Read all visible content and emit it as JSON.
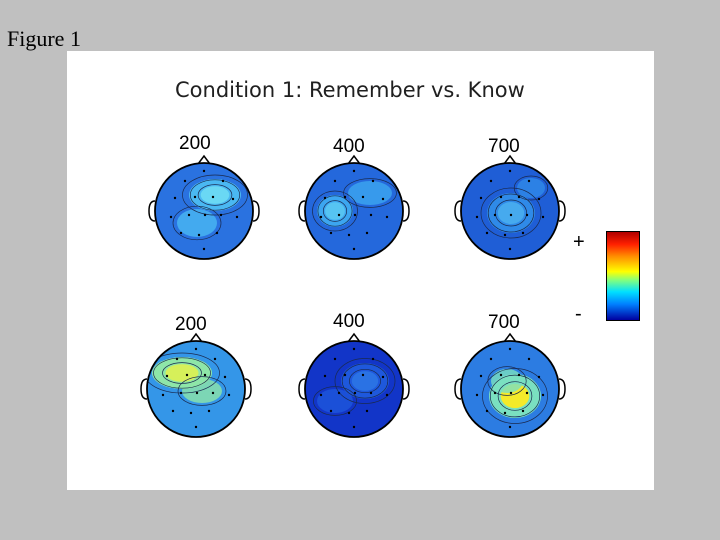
{
  "figure_label": "Figure 1",
  "title": "Condition 1: Remember vs. Know",
  "rows": [
    {
      "maps": [
        {
          "time": "200",
          "base": "#2a72e0",
          "hot": "#4ab8f2",
          "hot2": "#6ad8f4"
        },
        {
          "time": "400",
          "base": "#2468dc",
          "hot": "#3ca6f0",
          "hot2": "#56c4f2"
        },
        {
          "time": "700",
          "base": "#1f5ed6",
          "hot": "#2f8ae8",
          "hot2": "#46aaee"
        }
      ]
    },
    {
      "maps": [
        {
          "time": "200",
          "base": "#3496e8",
          "hot": "#8ee6a8",
          "hot2": "#d6f05a"
        },
        {
          "time": "400",
          "base": "#1235c8",
          "hot": "#1e58dc",
          "hot2": "#2a72e4"
        },
        {
          "time": "700",
          "base": "#2c7ce2",
          "hot": "#7ae0c0",
          "hot2": "#f4ea2a"
        }
      ]
    }
  ],
  "colorbar": {
    "plus": "+",
    "minus": "-"
  }
}
